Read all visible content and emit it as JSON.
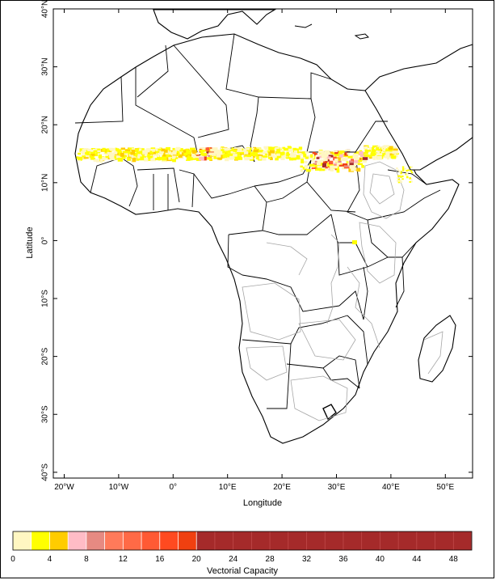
{
  "map": {
    "xlabel": "Longitude",
    "ylabel": "Latitude",
    "x_ticks": [
      "20°W",
      "10°W",
      "0°",
      "10°E",
      "20°E",
      "30°E",
      "40°E",
      "50°E"
    ],
    "y_ticks": [
      "40°N",
      "30°N",
      "20°N",
      "10°N",
      "0°",
      "10°S",
      "20°S",
      "30°S",
      "40°S"
    ],
    "lon_range": [
      -22,
      55
    ],
    "lat_range": [
      -41,
      40
    ],
    "colors": {
      "borders": "#000000",
      "contours": "#a6a6a6",
      "sea": "#ffffff"
    }
  },
  "colorbar": {
    "label": "Vectorial Capacity",
    "tick_labels": [
      "0",
      "4",
      "8",
      "12",
      "16",
      "20",
      "24",
      "28",
      "32",
      "36",
      "40",
      "44",
      "48"
    ],
    "bins": [
      {
        "from": 0,
        "to": 2,
        "color": "#fff7c2"
      },
      {
        "from": 2,
        "to": 4,
        "color": "#ffff00"
      },
      {
        "from": 4,
        "to": 6,
        "color": "#ffcc00"
      },
      {
        "from": 6,
        "to": 8,
        "color": "#ffbcc6"
      },
      {
        "from": 8,
        "to": 10,
        "color": "#e68a82"
      },
      {
        "from": 10,
        "to": 12,
        "color": "#ff7a5a"
      },
      {
        "from": 12,
        "to": 14,
        "color": "#ff6a46"
      },
      {
        "from": 14,
        "to": 16,
        "color": "#ff5a34"
      },
      {
        "from": 16,
        "to": 18,
        "color": "#ff4a20"
      },
      {
        "from": 18,
        "to": 20,
        "color": "#f04010"
      },
      {
        "from": 20,
        "to": 50,
        "color": "#a52a2a"
      }
    ]
  }
}
